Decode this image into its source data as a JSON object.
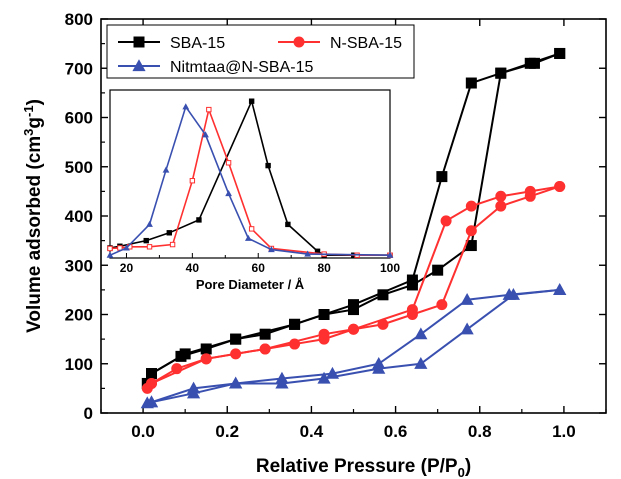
{
  "chart_data": [
    {
      "type": "line",
      "xlabel": "Relative Pressure (P/P0)",
      "ylabel": "Volume adsorbed (cm3g-1)",
      "xlim": [
        -0.1,
        1.1
      ],
      "ylim": [
        0,
        800
      ],
      "x_ticks": [
        "0.0",
        "0.2",
        "0.4",
        "0.6",
        "0.8",
        "1.0"
      ],
      "y_ticks": [
        "0",
        "100",
        "200",
        "300",
        "400",
        "500",
        "600",
        "700",
        "800"
      ],
      "grid": false,
      "legend": "top-left",
      "series": [
        {
          "name": "SBA-15",
          "color": "#000000",
          "marker": "square",
          "adsorption": {
            "x": [
              0.01,
              0.02,
              0.09,
              0.15,
              0.22,
              0.29,
              0.36,
              0.43,
              0.5,
              0.57,
              0.64,
              0.7,
              0.78,
              0.85,
              0.92,
              0.99
            ],
            "y": [
              60,
              80,
              115,
              130,
              150,
              160,
              180,
              200,
              210,
              240,
              260,
              290,
              340,
              690,
              710,
              730
            ]
          },
          "desorption": {
            "x": [
              0.99,
              0.93,
              0.85,
              0.78,
              0.71,
              0.64,
              0.5,
              0.36,
              0.22,
              0.1,
              0.02
            ],
            "y": [
              730,
              710,
              690,
              670,
              480,
              270,
              220,
              180,
              150,
              120,
              80
            ]
          }
        },
        {
          "name": "N-SBA-15",
          "color": "#ff3030",
          "marker": "circle",
          "adsorption": {
            "x": [
              0.01,
              0.02,
              0.08,
              0.15,
              0.22,
              0.29,
              0.36,
              0.43,
              0.5,
              0.57,
              0.64,
              0.71,
              0.78,
              0.85,
              0.92,
              0.99
            ],
            "y": [
              50,
              60,
              90,
              110,
              120,
              130,
              140,
              150,
              170,
              180,
              200,
              220,
              370,
              420,
              440,
              460
            ]
          },
          "desorption": {
            "x": [
              0.99,
              0.92,
              0.85,
              0.78,
              0.72,
              0.64,
              0.5,
              0.43,
              0.29,
              0.15,
              0.02
            ],
            "y": [
              460,
              450,
              440,
              420,
              390,
              210,
              170,
              160,
              130,
              110,
              60
            ]
          }
        },
        {
          "name": "Nitmtaa@N-SBA-15",
          "color": "#3a50b0",
          "marker": "triangle",
          "adsorption": {
            "x": [
              0.01,
              0.02,
              0.12,
              0.22,
              0.33,
              0.43,
              0.56,
              0.66,
              0.77,
              0.88,
              0.99
            ],
            "y": [
              20,
              22,
              40,
              60,
              60,
              70,
              90,
              100,
              170,
              240,
              250
            ]
          },
          "desorption": {
            "x": [
              0.99,
              0.87,
              0.77,
              0.66,
              0.56,
              0.45,
              0.33,
              0.22,
              0.12,
              0.02
            ],
            "y": [
              250,
              240,
              230,
              160,
              100,
              80,
              70,
              60,
              50,
              22
            ]
          }
        }
      ]
    },
    {
      "type": "line",
      "xlabel": "Pore Diameter / Å",
      "ylabel": "",
      "xlim": [
        15,
        100
      ],
      "ylim": [
        350,
        650
      ],
      "x_ticks": [
        "20",
        "40",
        "60",
        "80",
        "100"
      ],
      "grid": false,
      "series": [
        {
          "name": "SBA-15",
          "color": "#000000",
          "marker": "square-filled",
          "x": [
            15,
            18,
            26,
            33,
            42,
            58,
            63,
            69,
            78,
            80,
            89,
            100
          ],
          "y": [
            368,
            371,
            381,
            395,
            418,
            630,
            515,
            410,
            362,
            355,
            355,
            355
          ]
        },
        {
          "name": "N-SBA-15",
          "color": "#ff3030",
          "marker": "square-open",
          "x": [
            15,
            18,
            21,
            27,
            34,
            40,
            45,
            51,
            58,
            64,
            80,
            90,
            100
          ],
          "y": [
            367,
            368,
            370,
            370,
            374,
            488,
            615,
            520,
            402,
            367,
            357,
            355,
            355
          ]
        },
        {
          "name": "Nitmtaa@N-SBA-15",
          "color": "#3a50b0",
          "marker": "triangle",
          "x": [
            15,
            20,
            27,
            32,
            38,
            44,
            51,
            57,
            64,
            75,
            100
          ],
          "y": [
            355,
            368,
            410,
            507,
            620,
            570,
            465,
            385,
            365,
            357,
            355
          ]
        }
      ]
    }
  ]
}
